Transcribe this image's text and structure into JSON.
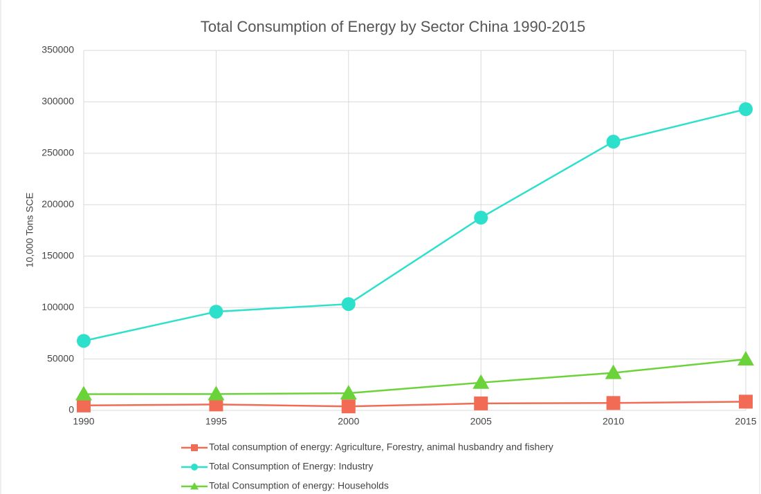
{
  "chart_data": {
    "type": "line",
    "title": "Total Consumption of Energy by Sector China 1990-2015",
    "y_label": "10,000 Tons SCE",
    "x": [
      1990,
      1995,
      2000,
      2005,
      2010,
      2015
    ],
    "xlim": [
      1990,
      2015
    ],
    "xticks": [
      1990,
      1995,
      2000,
      2005,
      2010,
      2015
    ],
    "ylim": [
      0,
      350000
    ],
    "yticks": [
      0,
      50000,
      100000,
      150000,
      200000,
      250000,
      300000,
      350000
    ],
    "grid": true,
    "legend": "bottom",
    "series": [
      {
        "name": "Total consumption of energy: Agriculture, Forestry, animal husbandry and fishery",
        "color": "#f26b55",
        "marker": "square",
        "values": [
          4800,
          5800,
          3900,
          6800,
          7200,
          8500
        ]
      },
      {
        "name": "Total Consumption of Energy: Industry",
        "color": "#2de0cc",
        "marker": "circle",
        "values": [
          67600,
          96000,
          103400,
          187400,
          261300,
          292900
        ]
      },
      {
        "name": "Total Consumption of energy: Households",
        "color": "#6bd33a",
        "marker": "triangle",
        "values": [
          15800,
          15900,
          16700,
          27000,
          36500,
          49700
        ]
      }
    ]
  }
}
